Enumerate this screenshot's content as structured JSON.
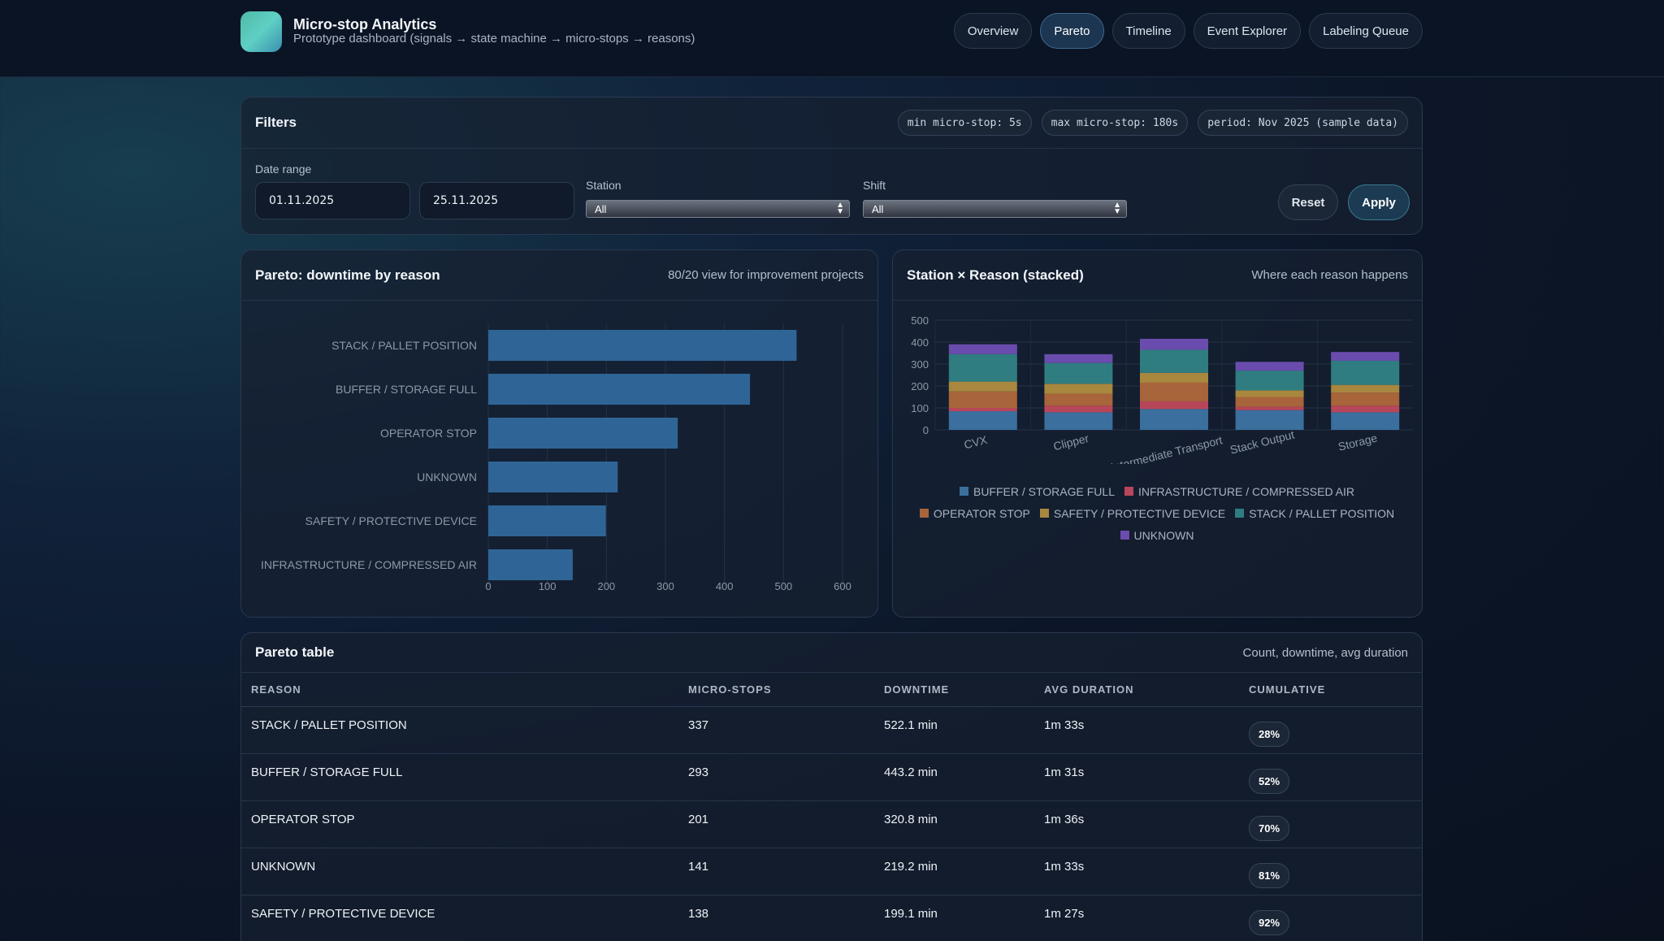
{
  "app": {
    "title": "Micro-stop Analytics",
    "subtitle": "Prototype dashboard (signals → state machine → micro-stops → reasons)"
  },
  "nav": [
    {
      "label": "Overview",
      "active": false
    },
    {
      "label": "Pareto",
      "active": true
    },
    {
      "label": "Timeline",
      "active": false
    },
    {
      "label": "Event Explorer",
      "active": false
    },
    {
      "label": "Labeling Queue",
      "active": false
    }
  ],
  "filters": {
    "title": "Filters",
    "pills": [
      "min micro-stop: 5s",
      "max micro-stop: 180s",
      "period: Nov 2025 (sample data)"
    ],
    "date_label": "Date range",
    "date_from": "01.11.2025",
    "date_to": "25.11.2025",
    "station_label": "Station",
    "station_value": "All",
    "shift_label": "Shift",
    "shift_value": "All",
    "reset_label": "Reset",
    "apply_label": "Apply"
  },
  "pareto_card": {
    "title": "Pareto: downtime by reason",
    "hint": "80/20 view for improvement projects"
  },
  "stacked_card": {
    "title": "Station × Reason (stacked)",
    "hint": "Where each reason happens"
  },
  "table_card": {
    "title": "Pareto table",
    "hint": "Count, downtime, avg duration"
  },
  "colors": {
    "BUFFER / STORAGE FULL": "#3a6f9e",
    "INFRASTRUCTURE / COMPRESSED AIR": "#b8465a",
    "OPERATOR STOP": "#a8643a",
    "SAFETY / PROTECTIVE DEVICE": "#a8873e",
    "STACK / PALLET POSITION": "#2f7d80",
    "UNKNOWN": "#6a4cae",
    "pareto_bar": "#2f6596"
  },
  "chart_data": [
    {
      "type": "bar",
      "orientation": "horizontal",
      "categories": [
        "STACK / PALLET POSITION",
        "BUFFER / STORAGE FULL",
        "OPERATOR STOP",
        "UNKNOWN",
        "SAFETY / PROTECTIVE DEVICE",
        "INFRASTRUCTURE / COMPRESSED AIR"
      ],
      "values": [
        522.1,
        443.2,
        320.8,
        219.2,
        199.1,
        143
      ],
      "xlim": [
        0,
        600
      ],
      "xticks": [
        0,
        100,
        200,
        300,
        400,
        500,
        600
      ],
      "grid": true
    },
    {
      "type": "bar",
      "stacked": true,
      "categories": [
        "CVX",
        "Clipper",
        "Intermediate Transport",
        "Stack Output",
        "Storage"
      ],
      "series": [
        {
          "name": "BUFFER / STORAGE FULL",
          "values": [
            85,
            80,
            95,
            90,
            80
          ]
        },
        {
          "name": "INFRASTRUCTURE / COMPRESSED AIR",
          "values": [
            15,
            30,
            35,
            15,
            30
          ]
        },
        {
          "name": "OPERATOR STOP",
          "values": [
            75,
            55,
            85,
            45,
            60
          ]
        },
        {
          "name": "SAFETY / PROTECTIVE DEVICE",
          "values": [
            45,
            45,
            45,
            30,
            35
          ]
        },
        {
          "name": "STACK / PALLET POSITION",
          "values": [
            125,
            95,
            105,
            90,
            110
          ]
        },
        {
          "name": "UNKNOWN",
          "values": [
            45,
            40,
            50,
            40,
            40
          ]
        }
      ],
      "ylim": [
        0,
        500
      ],
      "yticks": [
        0,
        100,
        200,
        300,
        400,
        500
      ],
      "legend": "bottom",
      "grid": true
    }
  ],
  "table": {
    "columns": [
      "REASON",
      "MICRO-STOPS",
      "DOWNTIME",
      "AVG DURATION",
      "CUMULATIVE"
    ],
    "rows": [
      [
        "STACK / PALLET POSITION",
        "337",
        "522.1 min",
        "1m 33s",
        "28%"
      ],
      [
        "BUFFER / STORAGE FULL",
        "293",
        "443.2 min",
        "1m 31s",
        "52%"
      ],
      [
        "OPERATOR STOP",
        "201",
        "320.8 min",
        "1m 36s",
        "70%"
      ],
      [
        "UNKNOWN",
        "141",
        "219.2 min",
        "1m 33s",
        "81%"
      ],
      [
        "SAFETY / PROTECTIVE DEVICE",
        "138",
        "199.1 min",
        "1m 27s",
        "92%"
      ]
    ]
  }
}
